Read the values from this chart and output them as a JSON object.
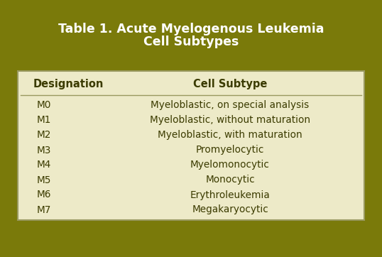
{
  "title_line1": "Table 1. Acute Myelogenous Leukemia",
  "title_line2": "Cell Subtypes",
  "title_color": "#FFFFFF",
  "header_col1": "Designation",
  "header_col2": "Cell Subtype",
  "header_text_color": "#3B3B00",
  "table_bg_color": "#EDEAC8",
  "outer_bg_color": "#7A7A0A",
  "rows": [
    [
      "M0",
      "Myeloblastic, on special analysis"
    ],
    [
      "M1",
      "Myeloblastic, without maturation"
    ],
    [
      "M2",
      "Myeloblastic, with maturation"
    ],
    [
      "M3",
      "Promyelocytic"
    ],
    [
      "M4",
      "Myelomonocytic"
    ],
    [
      "M5",
      "Monocytic"
    ],
    [
      "M6",
      "Erythroleukemia"
    ],
    [
      "M7",
      "Megakaryocytic"
    ]
  ],
  "row_text_color": "#3B3B00",
  "divider_color": "#999960",
  "title_fontsize": 12.5,
  "header_fontsize": 10.5,
  "row_fontsize": 9.8,
  "fig_width": 5.38,
  "fig_height": 3.62,
  "dpi": 100
}
